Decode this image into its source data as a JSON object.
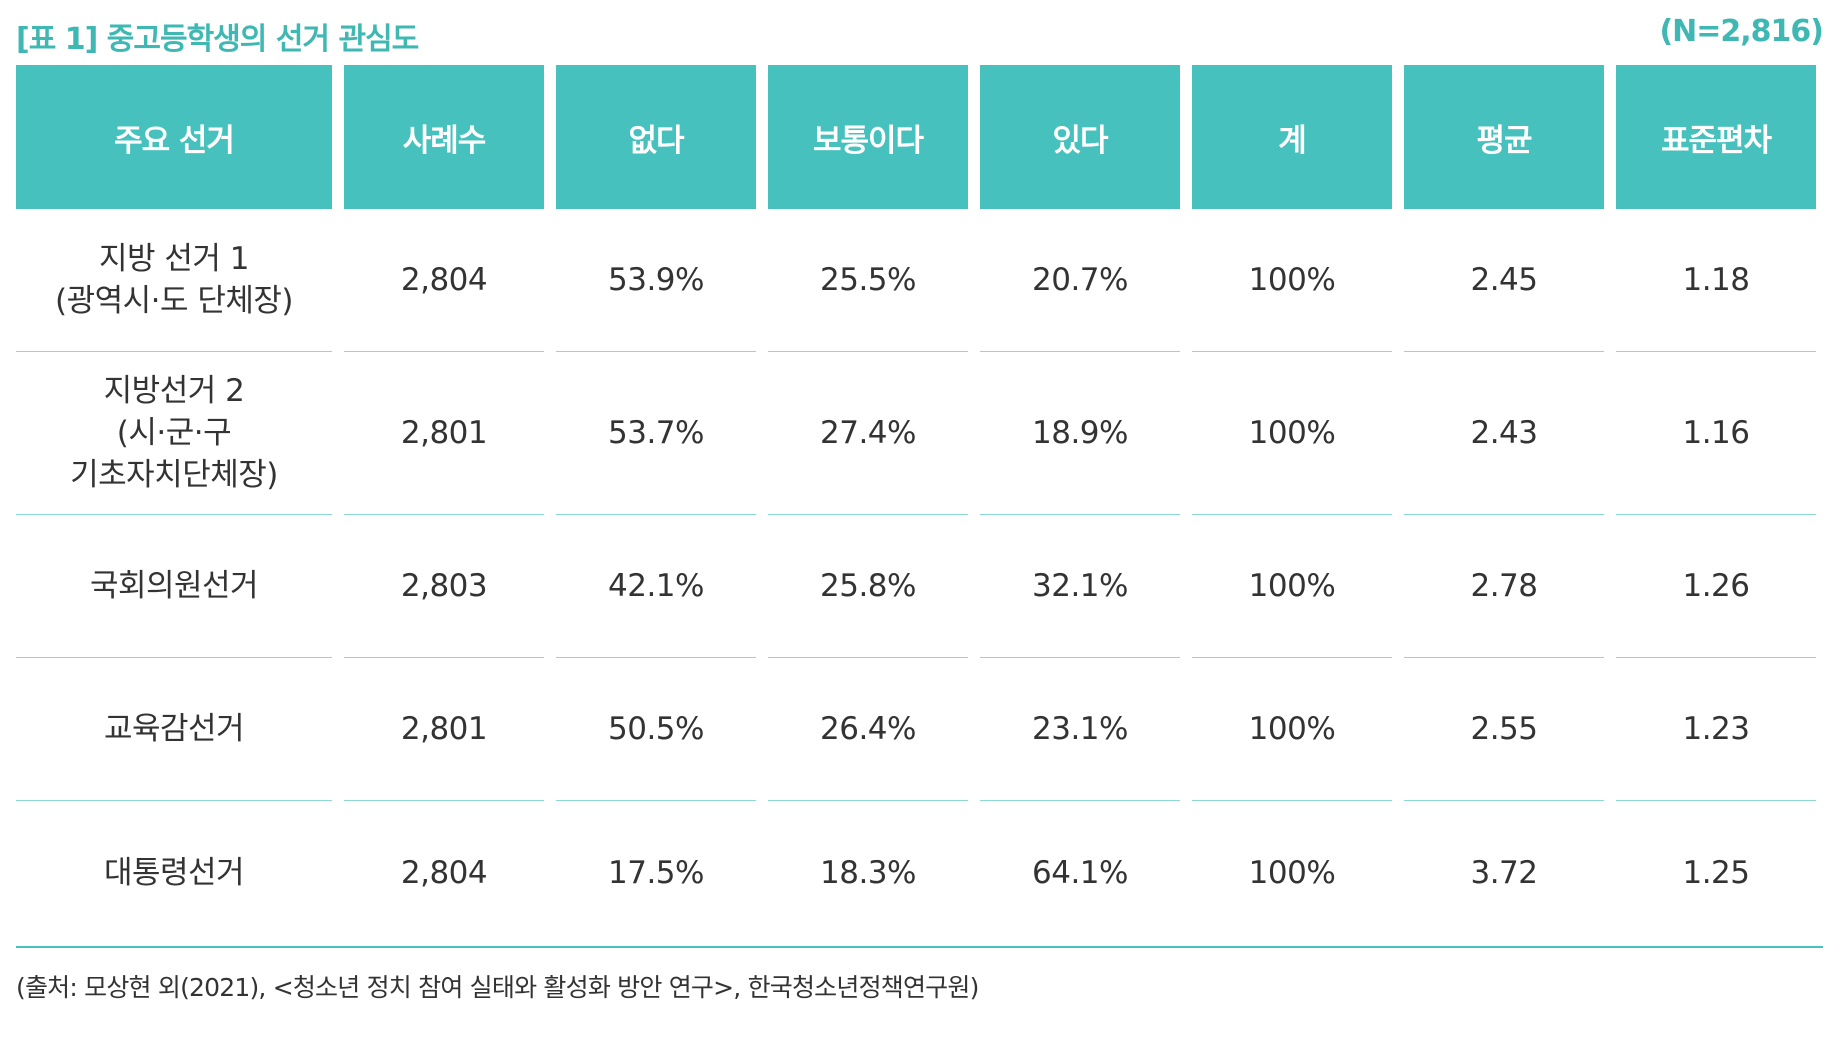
{
  "title": "[표 1] 중고등학생의 선거 관심도",
  "n_label": "(N=2,816)",
  "headers": [
    "주요 선거",
    "사례수",
    "없다",
    "보통이다",
    "있다",
    "계",
    "평균",
    "표준편차"
  ],
  "rows": [
    {
      "label_lines": [
        "지방 선거 1",
        "(광역시·도 단체장)"
      ],
      "cells": [
        "2,804",
        "53.9%",
        "25.5%",
        "20.7%",
        "100%",
        "2.45",
        "1.18"
      ]
    },
    {
      "label_lines": [
        "지방선거 2",
        "(시·군·구",
        "기초자치단체장)"
      ],
      "cells": [
        "2,801",
        "53.7%",
        "27.4%",
        "18.9%",
        "100%",
        "2.43",
        "1.16"
      ]
    },
    {
      "label_lines": [
        "국회의원선거"
      ],
      "cells": [
        "2,803",
        "42.1%",
        "25.8%",
        "32.1%",
        "100%",
        "2.78",
        "1.26"
      ]
    },
    {
      "label_lines": [
        "교육감선거"
      ],
      "cells": [
        "2,801",
        "50.5%",
        "26.4%",
        "23.1%",
        "100%",
        "2.55",
        "1.23"
      ]
    },
    {
      "label_lines": [
        "대통령선거"
      ],
      "cells": [
        "2,804",
        "17.5%",
        "18.3%",
        "64.1%",
        "100%",
        "3.72",
        "1.25"
      ]
    }
  ],
  "source": "(출처: 모상현 외(2021), <청소년 정치 참여 실태와 활성화 방안 연구>, 한국청소년정책연구원)",
  "colors": {
    "accent": "#47c1bd",
    "title_text": "#3fb8b3",
    "row_divider": "#8ed8d4",
    "body_text": "#333333"
  }
}
